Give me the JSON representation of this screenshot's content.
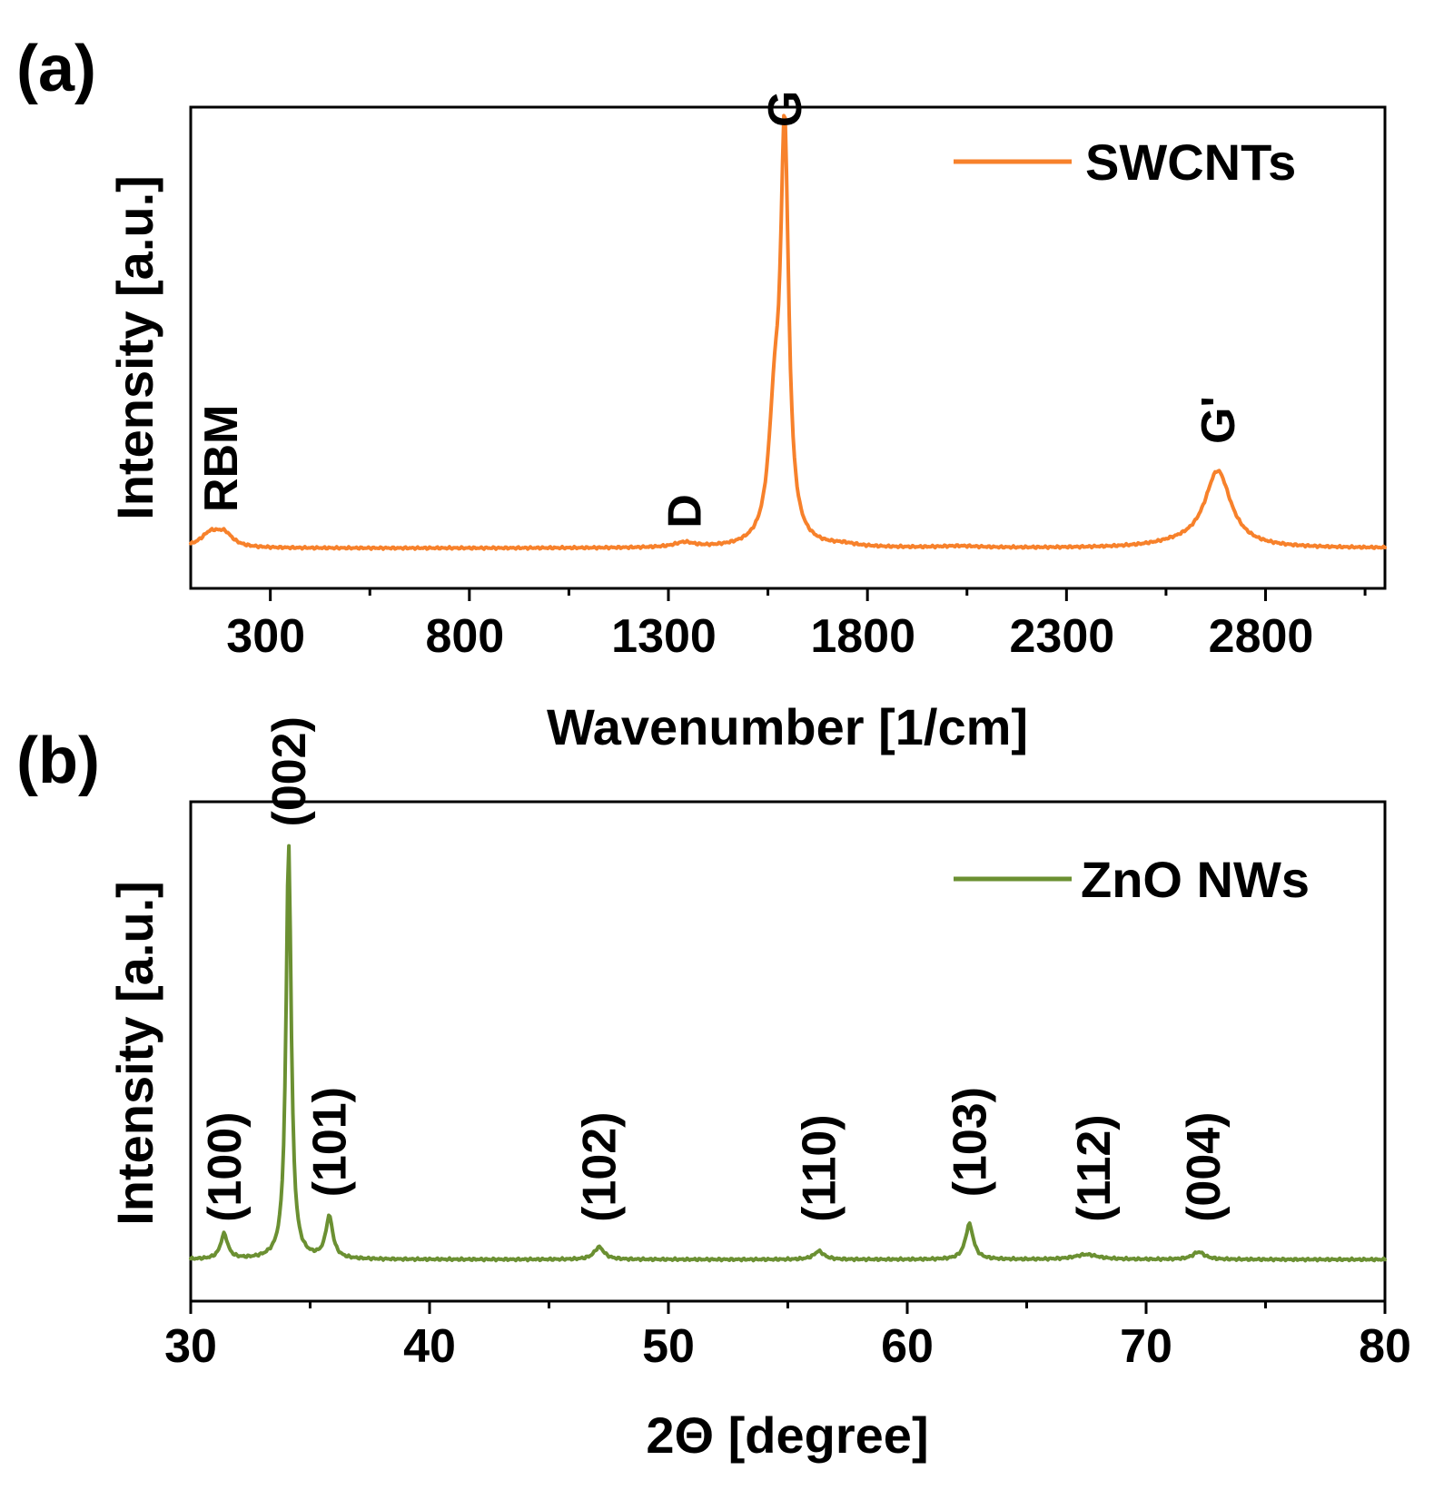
{
  "chart_data": [
    {
      "type": "line",
      "panel_label": "(a)",
      "xlabel": "Wavenumber [1/cm]",
      "ylabel": "Intensity [a.u.]",
      "xlim": [
        100,
        3100
      ],
      "ylim": [
        -0.1,
        1.1
      ],
      "x_ticks": [
        300,
        800,
        1300,
        1800,
        2300,
        2800
      ],
      "minor_x_ticks": [
        550,
        1050,
        1550,
        2050,
        2550,
        3050
      ],
      "legend_position": "top-right",
      "series": [
        {
          "name": "SWCNTs",
          "color": "#f7812b",
          "baseline": 0.0,
          "peaks": [
            {
              "x": 150,
              "height": 0.035,
              "width": 30
            },
            {
              "x": 185,
              "height": 0.03,
              "width": 25
            },
            {
              "x": 1340,
              "height": 0.012,
              "width": 30
            },
            {
              "x": 1567,
              "height": 0.3,
              "width": 18
            },
            {
              "x": 1592,
              "height": 0.99,
              "width": 12
            },
            {
              "x": 1740,
              "height": 0.006,
              "width": 40
            },
            {
              "x": 2030,
              "height": 0.004,
              "width": 60
            },
            {
              "x": 2680,
              "height": 0.19,
              "width": 40
            },
            {
              "x": 2580,
              "height": 0.008,
              "width": 80
            }
          ]
        }
      ],
      "annotations": [
        {
          "text": "RBM",
          "x": 175,
          "y": 0.09
        },
        {
          "text": "D",
          "x": 1340,
          "y": 0.05
        },
        {
          "text": "G",
          "x": 1592,
          "y": 1.05
        },
        {
          "text": "G'",
          "x": 2680,
          "y": 0.26
        }
      ]
    },
    {
      "type": "line",
      "panel_label": "(b)",
      "xlabel": "2Θ [degree]",
      "ylabel": "Intensity [a.u.]",
      "xlim": [
        30,
        80
      ],
      "ylim": [
        -0.1,
        1.1
      ],
      "x_ticks": [
        30,
        40,
        50,
        60,
        70,
        80
      ],
      "minor_x_ticks": [
        35,
        45,
        55,
        65,
        75
      ],
      "legend_position": "top-right",
      "series": [
        {
          "name": "ZnO NWs",
          "color": "#6b9032",
          "baseline": 0.0,
          "peaks": [
            {
              "x": 31.4,
              "height": 0.06,
              "width": 0.18
            },
            {
              "x": 34.1,
              "height": 1.0,
              "width": 0.13
            },
            {
              "x": 35.8,
              "height": 0.1,
              "width": 0.18
            },
            {
              "x": 47.1,
              "height": 0.03,
              "width": 0.25
            },
            {
              "x": 56.3,
              "height": 0.02,
              "width": 0.25
            },
            {
              "x": 62.6,
              "height": 0.085,
              "width": 0.2
            },
            {
              "x": 67.5,
              "height": 0.012,
              "width": 0.6
            },
            {
              "x": 72.2,
              "height": 0.018,
              "width": 0.3
            }
          ]
        }
      ],
      "annotations": [
        {
          "text": "(100)",
          "x": 31.4,
          "y": 0.09
        },
        {
          "text": "(002)",
          "x": 34.1,
          "y": 1.04
        },
        {
          "text": "(101)",
          "x": 35.8,
          "y": 0.15
        },
        {
          "text": "(102)",
          "x": 47.1,
          "y": 0.09
        },
        {
          "text": "(110)",
          "x": 56.3,
          "y": 0.09
        },
        {
          "text": "(103)",
          "x": 62.6,
          "y": 0.15
        },
        {
          "text": "(112)",
          "x": 67.8,
          "y": 0.09
        },
        {
          "text": "(004)",
          "x": 72.4,
          "y": 0.09
        }
      ]
    }
  ]
}
